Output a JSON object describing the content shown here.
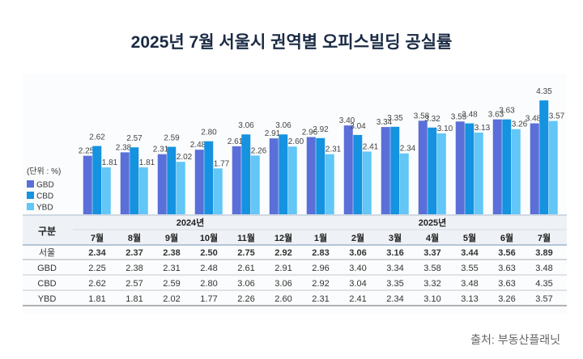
{
  "title": "2025년 7월 서울시 권역별 오피스빌딩 공실률",
  "source": "출처: 부동산플래닛",
  "chart_data": {
    "type": "bar",
    "unit_label": "(단위 : %)",
    "categories": [
      "7월",
      "8월",
      "9월",
      "10월",
      "11월",
      "12월",
      "1월",
      "2월",
      "3월",
      "4월",
      "5월",
      "6월",
      "7월"
    ],
    "years": [
      {
        "label": "2024년",
        "span": [
          0,
          5
        ]
      },
      {
        "label": "2025년",
        "span": [
          6,
          12
        ]
      }
    ],
    "series": [
      {
        "name": "GBD",
        "color": "#5a6fd8",
        "values": [
          2.25,
          2.38,
          2.31,
          2.48,
          2.61,
          2.91,
          2.96,
          3.4,
          3.34,
          3.58,
          3.55,
          3.63,
          3.48
        ]
      },
      {
        "name": "CBD",
        "color": "#1592e0",
        "values": [
          2.62,
          2.57,
          2.59,
          2.8,
          3.06,
          3.06,
          2.92,
          3.04,
          3.35,
          3.32,
          3.48,
          3.63,
          4.35
        ]
      },
      {
        "name": "YBD",
        "color": "#62c6f6",
        "values": [
          1.81,
          1.81,
          2.02,
          1.77,
          2.26,
          2.6,
          2.31,
          2.41,
          2.34,
          3.1,
          3.13,
          3.26,
          3.57
        ]
      }
    ],
    "table": {
      "header_label": "구분",
      "rows": [
        {
          "name": "서울",
          "bold": true,
          "values": [
            "2.34",
            "2.37",
            "2.38",
            "2.50",
            "2.75",
            "2.92",
            "2.83",
            "3.06",
            "3.16",
            "3.37",
            "3.44",
            "3.56",
            "3.89"
          ]
        },
        {
          "name": "GBD",
          "values": [
            "2.25",
            "2.38",
            "2.31",
            "2.48",
            "2.61",
            "2.91",
            "2.96",
            "3.40",
            "3.34",
            "3.58",
            "3.55",
            "3.63",
            "3.48"
          ]
        },
        {
          "name": "CBD",
          "values": [
            "2.62",
            "2.57",
            "2.59",
            "2.80",
            "3.06",
            "3.06",
            "2.92",
            "3.04",
            "3.35",
            "3.32",
            "3.48",
            "3.63",
            "4.35"
          ]
        },
        {
          "name": "YBD",
          "values": [
            "1.81",
            "1.81",
            "2.02",
            "1.77",
            "2.26",
            "2.60",
            "2.31",
            "2.41",
            "2.34",
            "3.10",
            "3.13",
            "3.26",
            "3.57"
          ]
        }
      ]
    },
    "ylim": [
      0,
      4.5
    ],
    "grid": false,
    "legend": "left"
  }
}
